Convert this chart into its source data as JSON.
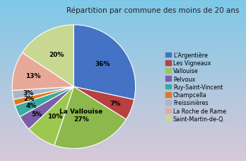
{
  "title": "Répartition par commune des moins de 20 ans",
  "legend_labels": [
    "L'Argentière",
    "Les Vigneaux",
    "Vallouise",
    "Pelvoux",
    "Puy-Saint-Vincent",
    "Champcella",
    "Freissinières",
    "La Roche de Rame",
    "Saint-Martin-de-Q."
  ],
  "values": [
    36,
    7,
    27,
    10,
    5,
    4,
    2,
    3,
    13,
    20
  ],
  "colors": [
    "#4472C4",
    "#B84040",
    "#8CB84C",
    "#8CB84C",
    "#7B5EA8",
    "#3BAAA0",
    "#E07820",
    "#A8B8C8",
    "#E8A898",
    "#C8D890"
  ],
  "slice_colors": [
    "#4472C4",
    "#B84040",
    "#8CB84C",
    "#9CC850",
    "#7B5EA8",
    "#3BAAA0",
    "#E07820",
    "#A8B8C8",
    "#E8A898",
    "#C8D890"
  ],
  "pct_labels": [
    "36%",
    "7%",
    "27%",
    "10%",
    "5%",
    "4%",
    "2%",
    "3%",
    "13%",
    "20%"
  ],
  "extra_label": "La Vallouise",
  "bg_top": "#7EC8E8",
  "bg_bottom": "#D8C8D8",
  "startangle": 90,
  "title_fontsize": 7.5,
  "label_fontsize": 6.5
}
